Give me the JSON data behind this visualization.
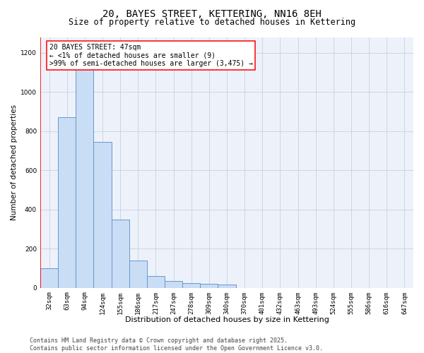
{
  "title_line1": "20, BAYES STREET, KETTERING, NN16 8EH",
  "title_line2": "Size of property relative to detached houses in Kettering",
  "xlabel": "Distribution of detached houses by size in Kettering",
  "ylabel": "Number of detached properties",
  "categories": [
    "32sqm",
    "63sqm",
    "94sqm",
    "124sqm",
    "155sqm",
    "186sqm",
    "217sqm",
    "247sqm",
    "278sqm",
    "309sqm",
    "340sqm",
    "370sqm",
    "401sqm",
    "432sqm",
    "463sqm",
    "493sqm",
    "524sqm",
    "555sqm",
    "586sqm",
    "616sqm",
    "647sqm"
  ],
  "values": [
    100,
    870,
    1155,
    745,
    350,
    140,
    60,
    35,
    25,
    20,
    15,
    0,
    0,
    0,
    0,
    0,
    0,
    0,
    0,
    0,
    0
  ],
  "bar_color": "#c9ddf5",
  "bar_edge_color": "#6699cc",
  "bar_linewidth": 0.7,
  "annotation_text": "20 BAYES STREET: 47sqm\n← <1% of detached houses are smaller (9)\n>99% of semi-detached houses are larger (3,475) →",
  "annotation_box_color": "white",
  "annotation_box_edgecolor": "red",
  "ylim": [
    0,
    1280
  ],
  "yticks": [
    0,
    200,
    400,
    600,
    800,
    1000,
    1200
  ],
  "grid_color": "#c8d0e0",
  "background_color": "#edf2fa",
  "footer_text": "Contains HM Land Registry data © Crown copyright and database right 2025.\nContains public sector information licensed under the Open Government Licence v3.0.",
  "title_fontsize": 10,
  "subtitle_fontsize": 8.5,
  "xlabel_fontsize": 8,
  "ylabel_fontsize": 7.5,
  "tick_fontsize": 6.5,
  "annotation_fontsize": 7,
  "footer_fontsize": 6
}
